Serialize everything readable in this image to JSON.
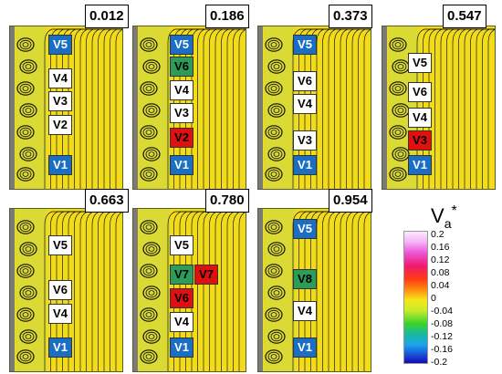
{
  "panels": [
    {
      "time": "0.012",
      "tags": [
        "V5",
        "V4",
        "V3",
        "V2",
        "V1"
      ]
    },
    {
      "time": "0.186",
      "tags": [
        "V5",
        "V6",
        "V4",
        "V3",
        "V2",
        "V1"
      ]
    },
    {
      "time": "0.373",
      "tags": [
        "V5",
        "V6",
        "V4",
        "V3",
        "V1"
      ]
    },
    {
      "time": "0.547",
      "tags": [
        "V5",
        "V6",
        "V4",
        "V3",
        "V1"
      ]
    },
    {
      "time": "0.663",
      "tags": [
        "V5",
        "V6",
        "V4",
        "V1"
      ]
    },
    {
      "time": "0.780",
      "tags": [
        "V5",
        "V7",
        "V7",
        "V6",
        "V4",
        "V1"
      ]
    },
    {
      "time": "0.954",
      "tags": [
        "V5",
        "V8",
        "V4",
        "V1"
      ]
    }
  ],
  "legend": {
    "title_main": "V",
    "title_sub": "a",
    "title_sup": "*",
    "ticks": [
      "0.2",
      "0.16",
      "0.12",
      "0.08",
      "0.04",
      "0",
      "-0.04",
      "-0.08",
      "-0.12",
      "-0.16",
      "-0.2"
    ]
  },
  "colors": {
    "field": "#f2dc1a",
    "blue_tag": "#1a6fc4",
    "red_tag": "#e01010",
    "green_tag": "#2c9c58"
  }
}
